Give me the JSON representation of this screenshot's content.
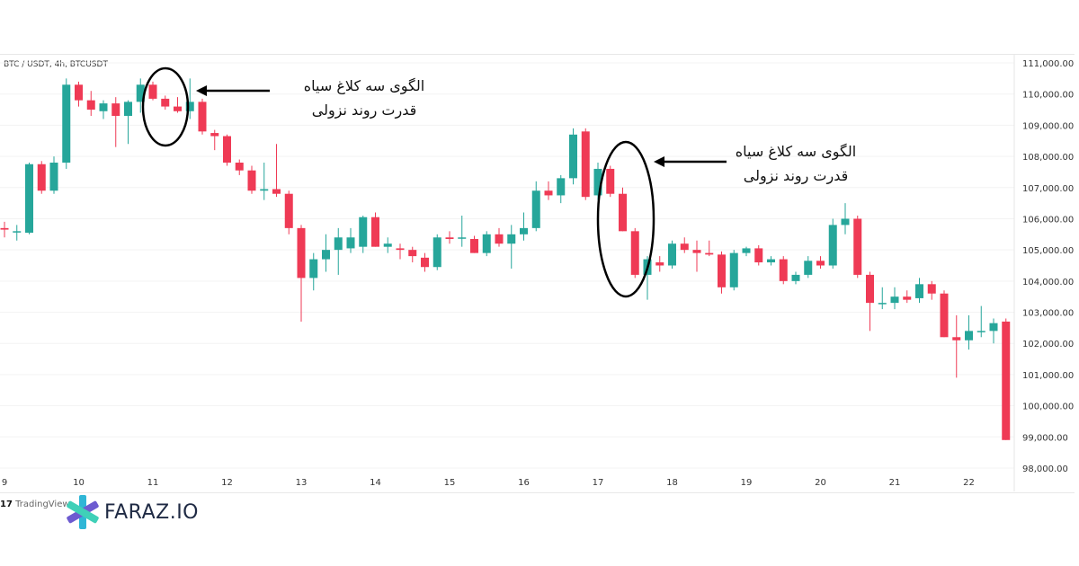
{
  "symbol_label": "BTC / USDT, 4h, BTCUSDT",
  "tradingview_label": "TradingView",
  "brand_name": "FARAZ.IO",
  "annotations": [
    {
      "line1": "الگوی سه کلاغ سیاه",
      "line2": "قدرت روند نزولی"
    },
    {
      "line1": "الگوی سه کلاغ سیاه",
      "line2": "قدرت روند نزولی"
    }
  ],
  "colors": {
    "up": "#26a69a",
    "down": "#ef3a55",
    "grid": "#f3f3f3",
    "axis_text": "#333333"
  },
  "chart_data": {
    "type": "candlestick",
    "y_ticks": [
      "111,000.00",
      "110,000.00",
      "109,000.00",
      "108,000.00",
      "107,000.00",
      "106,000.00",
      "105,000.00",
      "104,000.00",
      "103,000.00",
      "102,000.00",
      "101,000.00",
      "100,000.00",
      "99,000.00",
      "98,000.00"
    ],
    "ylim": [
      98000,
      111000
    ],
    "x_ticks": [
      {
        "label": "9",
        "index": 0
      },
      {
        "label": "10",
        "index": 6
      },
      {
        "label": "11",
        "index": 12
      },
      {
        "label": "12",
        "index": 18
      },
      {
        "label": "13",
        "index": 24
      },
      {
        "label": "14",
        "index": 30
      },
      {
        "label": "15",
        "index": 36
      },
      {
        "label": "16",
        "index": 42
      },
      {
        "label": "17",
        "index": 48
      },
      {
        "label": "18",
        "index": 54
      },
      {
        "label": "19",
        "index": 60
      },
      {
        "label": "20",
        "index": 66
      },
      {
        "label": "21",
        "index": 72
      },
      {
        "label": "22",
        "index": 78
      }
    ],
    "candles": [
      {
        "o": 105700,
        "h": 105900,
        "l": 105400,
        "c": 105650
      },
      {
        "o": 105600,
        "h": 105800,
        "l": 105300,
        "c": 105600
      },
      {
        "o": 105550,
        "h": 107800,
        "l": 105500,
        "c": 107750
      },
      {
        "o": 107750,
        "h": 107850,
        "l": 106800,
        "c": 106900
      },
      {
        "o": 106900,
        "h": 108000,
        "l": 106800,
        "c": 107800
      },
      {
        "o": 107800,
        "h": 110500,
        "l": 107600,
        "c": 110300
      },
      {
        "o": 110300,
        "h": 110400,
        "l": 109600,
        "c": 109800
      },
      {
        "o": 109800,
        "h": 110100,
        "l": 109300,
        "c": 109500
      },
      {
        "o": 109450,
        "h": 109800,
        "l": 109200,
        "c": 109700
      },
      {
        "o": 109700,
        "h": 109900,
        "l": 108300,
        "c": 109300
      },
      {
        "o": 109300,
        "h": 109800,
        "l": 108400,
        "c": 109750
      },
      {
        "o": 109750,
        "h": 110500,
        "l": 109400,
        "c": 110300
      },
      {
        "o": 110300,
        "h": 110400,
        "l": 109800,
        "c": 109850
      },
      {
        "o": 109850,
        "h": 109950,
        "l": 109500,
        "c": 109600
      },
      {
        "o": 109600,
        "h": 109900,
        "l": 109400,
        "c": 109450
      },
      {
        "o": 109450,
        "h": 110500,
        "l": 109200,
        "c": 109750
      },
      {
        "o": 109750,
        "h": 109850,
        "l": 108700,
        "c": 108800
      },
      {
        "o": 108750,
        "h": 108850,
        "l": 108200,
        "c": 108650
      },
      {
        "o": 108650,
        "h": 108700,
        "l": 107700,
        "c": 107800
      },
      {
        "o": 107800,
        "h": 107900,
        "l": 107400,
        "c": 107550
      },
      {
        "o": 107550,
        "h": 107700,
        "l": 106800,
        "c": 106900
      },
      {
        "o": 106900,
        "h": 107800,
        "l": 106600,
        "c": 106950
      },
      {
        "o": 106950,
        "h": 108400,
        "l": 106700,
        "c": 106800
      },
      {
        "o": 106800,
        "h": 106900,
        "l": 105500,
        "c": 105700
      },
      {
        "o": 105700,
        "h": 105800,
        "l": 102700,
        "c": 104100
      },
      {
        "o": 104100,
        "h": 104900,
        "l": 103700,
        "c": 104700
      },
      {
        "o": 104700,
        "h": 105500,
        "l": 104300,
        "c": 105000
      },
      {
        "o": 105000,
        "h": 105700,
        "l": 104200,
        "c": 105400
      },
      {
        "o": 105050,
        "h": 105700,
        "l": 104900,
        "c": 105400
      },
      {
        "o": 105100,
        "h": 106100,
        "l": 104900,
        "c": 106050
      },
      {
        "o": 106050,
        "h": 106200,
        "l": 105100,
        "c": 105100
      },
      {
        "o": 105100,
        "h": 105400,
        "l": 104900,
        "c": 105200
      },
      {
        "o": 105050,
        "h": 105200,
        "l": 104700,
        "c": 105000
      },
      {
        "o": 105000,
        "h": 105100,
        "l": 104600,
        "c": 104800
      },
      {
        "o": 104750,
        "h": 104900,
        "l": 104300,
        "c": 104450
      },
      {
        "o": 104450,
        "h": 105500,
        "l": 104350,
        "c": 105400
      },
      {
        "o": 105400,
        "h": 105600,
        "l": 105200,
        "c": 105350
      },
      {
        "o": 105400,
        "h": 106100,
        "l": 105100,
        "c": 105400
      },
      {
        "o": 105350,
        "h": 105450,
        "l": 104900,
        "c": 104900
      },
      {
        "o": 104900,
        "h": 105600,
        "l": 104800,
        "c": 105500
      },
      {
        "o": 105500,
        "h": 105700,
        "l": 105100,
        "c": 105200
      },
      {
        "o": 105200,
        "h": 105800,
        "l": 104400,
        "c": 105500
      },
      {
        "o": 105500,
        "h": 106200,
        "l": 105300,
        "c": 105700
      },
      {
        "o": 105700,
        "h": 107200,
        "l": 105600,
        "c": 106900
      },
      {
        "o": 106900,
        "h": 107200,
        "l": 106600,
        "c": 106750
      },
      {
        "o": 106750,
        "h": 107400,
        "l": 106500,
        "c": 107300
      },
      {
        "o": 107300,
        "h": 108900,
        "l": 107100,
        "c": 108700
      },
      {
        "o": 108800,
        "h": 108900,
        "l": 106600,
        "c": 106700
      },
      {
        "o": 106750,
        "h": 107800,
        "l": 106600,
        "c": 107600
      },
      {
        "o": 107600,
        "h": 107700,
        "l": 106700,
        "c": 106800
      },
      {
        "o": 106800,
        "h": 107000,
        "l": 105600,
        "c": 105600
      },
      {
        "o": 105600,
        "h": 105700,
        "l": 104100,
        "c": 104200
      },
      {
        "o": 104200,
        "h": 104800,
        "l": 103400,
        "c": 104700
      },
      {
        "o": 104600,
        "h": 104800,
        "l": 104300,
        "c": 104500
      },
      {
        "o": 104500,
        "h": 105300,
        "l": 104400,
        "c": 105200
      },
      {
        "o": 105200,
        "h": 105400,
        "l": 104900,
        "c": 105000
      },
      {
        "o": 105000,
        "h": 105300,
        "l": 104300,
        "c": 104900
      },
      {
        "o": 104900,
        "h": 105300,
        "l": 104800,
        "c": 104850
      },
      {
        "o": 104850,
        "h": 104950,
        "l": 103600,
        "c": 103800
      },
      {
        "o": 103800,
        "h": 105000,
        "l": 103700,
        "c": 104900
      },
      {
        "o": 104900,
        "h": 105100,
        "l": 104800,
        "c": 105050
      },
      {
        "o": 105050,
        "h": 105150,
        "l": 104500,
        "c": 104600
      },
      {
        "o": 104600,
        "h": 104800,
        "l": 104500,
        "c": 104700
      },
      {
        "o": 104700,
        "h": 104800,
        "l": 103900,
        "c": 104000
      },
      {
        "o": 104000,
        "h": 104300,
        "l": 103900,
        "c": 104200
      },
      {
        "o": 104200,
        "h": 104800,
        "l": 104100,
        "c": 104650
      },
      {
        "o": 104650,
        "h": 104800,
        "l": 104400,
        "c": 104500
      },
      {
        "o": 104500,
        "h": 106000,
        "l": 104400,
        "c": 105800
      },
      {
        "o": 105800,
        "h": 106500,
        "l": 105500,
        "c": 106000
      },
      {
        "o": 106000,
        "h": 106100,
        "l": 104100,
        "c": 104200
      },
      {
        "o": 104200,
        "h": 104300,
        "l": 102400,
        "c": 103300
      },
      {
        "o": 103300,
        "h": 103800,
        "l": 103100,
        "c": 103300
      },
      {
        "o": 103300,
        "h": 103800,
        "l": 103100,
        "c": 103500
      },
      {
        "o": 103500,
        "h": 103700,
        "l": 103300,
        "c": 103400
      },
      {
        "o": 103450,
        "h": 104100,
        "l": 103300,
        "c": 103900
      },
      {
        "o": 103900,
        "h": 104000,
        "l": 103400,
        "c": 103600
      },
      {
        "o": 103600,
        "h": 103700,
        "l": 102200,
        "c": 102200
      },
      {
        "o": 102200,
        "h": 102900,
        "l": 100900,
        "c": 102100
      },
      {
        "o": 102100,
        "h": 102900,
        "l": 101800,
        "c": 102400
      },
      {
        "o": 102400,
        "h": 103200,
        "l": 102200,
        "c": 102400
      },
      {
        "o": 102400,
        "h": 102800,
        "l": 102000,
        "c": 102650
      },
      {
        "o": 102700,
        "h": 102800,
        "l": 98900,
        "c": 98900
      }
    ]
  }
}
